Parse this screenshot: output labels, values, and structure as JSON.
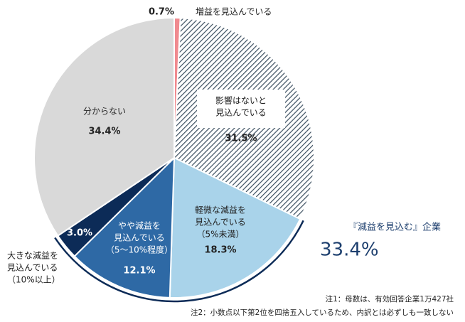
{
  "chart_data": {
    "type": "pie",
    "categories": [
      [
        "増益を見込んでいる"
      ],
      [
        "影響はないと",
        "見込んでいる"
      ],
      [
        "軽微な減益を",
        "見込んでいる",
        "（5%未満）"
      ],
      [
        "やや減益を",
        "見込んでいる",
        "（5～10%程度）"
      ],
      [
        "大きな減益を",
        "見込んでいる",
        "（10%以上）"
      ],
      [
        "分からない"
      ]
    ],
    "values": [
      0.7,
      31.5,
      18.3,
      12.1,
      3.0,
      34.4
    ],
    "value_labels": [
      "0.7%",
      "31.5%",
      "18.3%",
      "12.1%",
      "3.0%",
      "34.4%"
    ],
    "colors": [
      "#f08a8f",
      "hatch",
      "#a9d3ea",
      "#2e69a5",
      "#0c2b57",
      "#d9d9d9"
    ],
    "annotations": [
      "『減益を見込む』企業",
      "33.4%"
    ],
    "notes": [
      "注1：母数は、有効回答企業1万427社",
      "注2：小数点以下第2位を四捨五入しているため、内訳とは必ずしも一致しない"
    ]
  }
}
